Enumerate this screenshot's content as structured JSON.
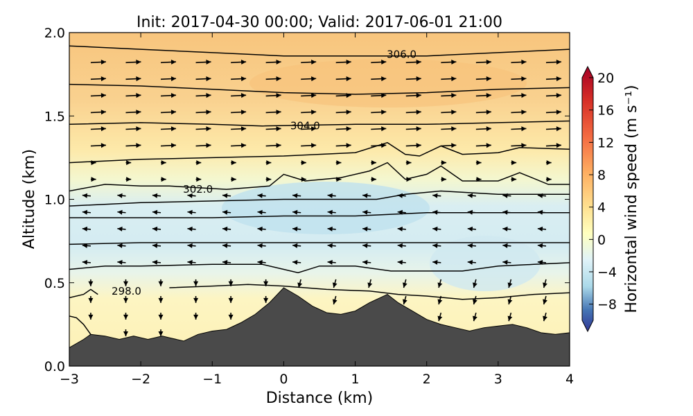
{
  "chart_data": {
    "type": "contour",
    "title": "Init: 2017-04-30 00:00; Valid: 2017-06-01 21:00",
    "xlabel": "Distance (km)",
    "ylabel": "Altitude (km)",
    "xlim": [
      -3,
      4
    ],
    "ylim": [
      0.0,
      2.0
    ],
    "x_ticks": [
      "−3",
      "−2",
      "−1",
      "0",
      "1",
      "2",
      "3",
      "4"
    ],
    "y_ticks": [
      "0.0",
      "0.5",
      "1.0",
      "1.5",
      "2.0"
    ],
    "colorbar": {
      "label": "Horizontal wind speed (m s⁻¹)",
      "range": [
        -10,
        20
      ],
      "ticks": [
        "20",
        "16",
        "12",
        "8",
        "4",
        "0",
        "−4",
        "−8"
      ],
      "colormap": "RdYlBu_r"
    },
    "terrain": [
      [
        -3.0,
        0.11
      ],
      [
        -2.8,
        0.16
      ],
      [
        -2.7,
        0.19
      ],
      [
        -2.5,
        0.18
      ],
      [
        -2.3,
        0.16
      ],
      [
        -2.1,
        0.18
      ],
      [
        -1.9,
        0.16
      ],
      [
        -1.7,
        0.18
      ],
      [
        -1.6,
        0.17
      ],
      [
        -1.4,
        0.15
      ],
      [
        -1.2,
        0.19
      ],
      [
        -1.0,
        0.21
      ],
      [
        -0.8,
        0.22
      ],
      [
        -0.6,
        0.26
      ],
      [
        -0.4,
        0.31
      ],
      [
        -0.2,
        0.38
      ],
      [
        0.0,
        0.47
      ],
      [
        0.2,
        0.42
      ],
      [
        0.4,
        0.36
      ],
      [
        0.6,
        0.32
      ],
      [
        0.8,
        0.31
      ],
      [
        1.0,
        0.33
      ],
      [
        1.2,
        0.38
      ],
      [
        1.45,
        0.43
      ],
      [
        1.6,
        0.38
      ],
      [
        1.8,
        0.33
      ],
      [
        2.0,
        0.28
      ],
      [
        2.2,
        0.25
      ],
      [
        2.4,
        0.23
      ],
      [
        2.6,
        0.21
      ],
      [
        2.8,
        0.23
      ],
      [
        3.0,
        0.24
      ],
      [
        3.2,
        0.25
      ],
      [
        3.4,
        0.23
      ],
      [
        3.6,
        0.2
      ],
      [
        3.8,
        0.19
      ],
      [
        4.0,
        0.2
      ]
    ],
    "theta_contours": [
      {
        "label": "306.0",
        "label_pos": [
          1.65,
          1.87
        ],
        "points": [
          [
            -3,
            1.92
          ],
          [
            -2,
            1.9
          ],
          [
            -1,
            1.88
          ],
          [
            0,
            1.86
          ],
          [
            1,
            1.86
          ],
          [
            2,
            1.86
          ],
          [
            3,
            1.88
          ],
          [
            4,
            1.9
          ]
        ]
      },
      {
        "label": "",
        "points": [
          [
            -3,
            1.69
          ],
          [
            -2,
            1.68
          ],
          [
            -1,
            1.66
          ],
          [
            0,
            1.64
          ],
          [
            1,
            1.63
          ],
          [
            2,
            1.64
          ],
          [
            3,
            1.66
          ],
          [
            4,
            1.67
          ]
        ]
      },
      {
        "label": "304.0",
        "label_pos": [
          0.3,
          1.44
        ],
        "points": [
          [
            -3,
            1.45
          ],
          [
            -2,
            1.46
          ],
          [
            -1,
            1.45
          ],
          [
            -0.3,
            1.44
          ],
          [
            1,
            1.45
          ],
          [
            2,
            1.45
          ],
          [
            3,
            1.46
          ],
          [
            4,
            1.47
          ]
        ]
      },
      {
        "label": "",
        "points": [
          [
            -3,
            1.22
          ],
          [
            -2,
            1.24
          ],
          [
            -1,
            1.25
          ],
          [
            0,
            1.26
          ],
          [
            1,
            1.28
          ],
          [
            1.45,
            1.34
          ],
          [
            1.7,
            1.27
          ],
          [
            1.9,
            1.26
          ],
          [
            2.2,
            1.32
          ],
          [
            2.5,
            1.27
          ],
          [
            3.0,
            1.28
          ],
          [
            3.3,
            1.31
          ],
          [
            4,
            1.3
          ]
        ]
      },
      {
        "label": "302.0",
        "label_pos": [
          -1.2,
          1.06
        ],
        "points": [
          [
            -3,
            1.05
          ],
          [
            -2.5,
            1.09
          ],
          [
            -2,
            1.08
          ],
          [
            -1.6,
            1.08
          ],
          [
            -0.8,
            1.06
          ],
          [
            -0.2,
            1.08
          ],
          [
            0,
            1.15
          ],
          [
            0.3,
            1.11
          ],
          [
            0.8,
            1.13
          ],
          [
            1.2,
            1.17
          ],
          [
            1.45,
            1.22
          ],
          [
            1.7,
            1.12
          ],
          [
            2.0,
            1.15
          ],
          [
            2.2,
            1.2
          ],
          [
            2.5,
            1.11
          ],
          [
            3.0,
            1.11
          ],
          [
            3.3,
            1.16
          ],
          [
            3.7,
            1.09
          ],
          [
            4,
            1.09
          ]
        ]
      },
      {
        "label": "",
        "points": [
          [
            -3,
            0.96
          ],
          [
            -2,
            0.98
          ],
          [
            -1,
            0.99
          ],
          [
            0,
            1.0
          ],
          [
            0.7,
            1.0
          ],
          [
            1.3,
            1.0
          ],
          [
            1.7,
            1.03
          ],
          [
            2.2,
            1.05
          ],
          [
            3.0,
            1.03
          ],
          [
            3.5,
            1.03
          ],
          [
            4,
            1.03
          ]
        ]
      },
      {
        "label": "",
        "points": [
          [
            -3,
            0.89
          ],
          [
            -2,
            0.89
          ],
          [
            -1,
            0.89
          ],
          [
            0,
            0.9
          ],
          [
            1,
            0.9
          ],
          [
            2,
            0.92
          ],
          [
            3,
            0.92
          ],
          [
            4,
            0.92
          ]
        ]
      },
      {
        "label": "",
        "points": [
          [
            -3,
            0.73
          ],
          [
            -2,
            0.74
          ],
          [
            -1,
            0.74
          ],
          [
            0,
            0.74
          ],
          [
            1,
            0.74
          ],
          [
            2,
            0.74
          ],
          [
            3,
            0.74
          ],
          [
            4,
            0.74
          ]
        ]
      },
      {
        "label": "",
        "points": [
          [
            -3,
            0.58
          ],
          [
            -2.5,
            0.6
          ],
          [
            -2,
            0.6
          ],
          [
            -1,
            0.61
          ],
          [
            -0.3,
            0.61
          ],
          [
            0,
            0.58
          ],
          [
            0.2,
            0.56
          ],
          [
            0.5,
            0.6
          ],
          [
            1,
            0.6
          ],
          [
            1.5,
            0.57
          ],
          [
            2,
            0.57
          ],
          [
            2.5,
            0.57
          ],
          [
            3,
            0.6
          ],
          [
            3.5,
            0.61
          ],
          [
            4,
            0.62
          ]
        ]
      },
      {
        "label": "298.0",
        "label_pos": [
          -2.2,
          0.45
        ],
        "points": [
          [
            -1.6,
            0.47
          ],
          [
            -1,
            0.48
          ],
          [
            -0.5,
            0.49
          ],
          [
            0,
            0.48
          ],
          [
            0.6,
            0.46
          ],
          [
            1.2,
            0.45
          ],
          [
            1.6,
            0.43
          ],
          [
            2,
            0.42
          ],
          [
            2.5,
            0.4
          ],
          [
            3,
            0.41
          ],
          [
            3.5,
            0.43
          ],
          [
            4,
            0.44
          ]
        ]
      },
      {
        "label": "",
        "points": [
          [
            -3,
            0.41
          ],
          [
            -2.8,
            0.43
          ],
          [
            -2.7,
            0.46
          ],
          [
            -2.6,
            0.43
          ]
        ]
      },
      {
        "label": "",
        "points": [
          [
            -3,
            0.3
          ],
          [
            -2.9,
            0.29
          ],
          [
            -2.8,
            0.25
          ],
          [
            -2.7,
            0.19
          ]
        ]
      }
    ]
  }
}
